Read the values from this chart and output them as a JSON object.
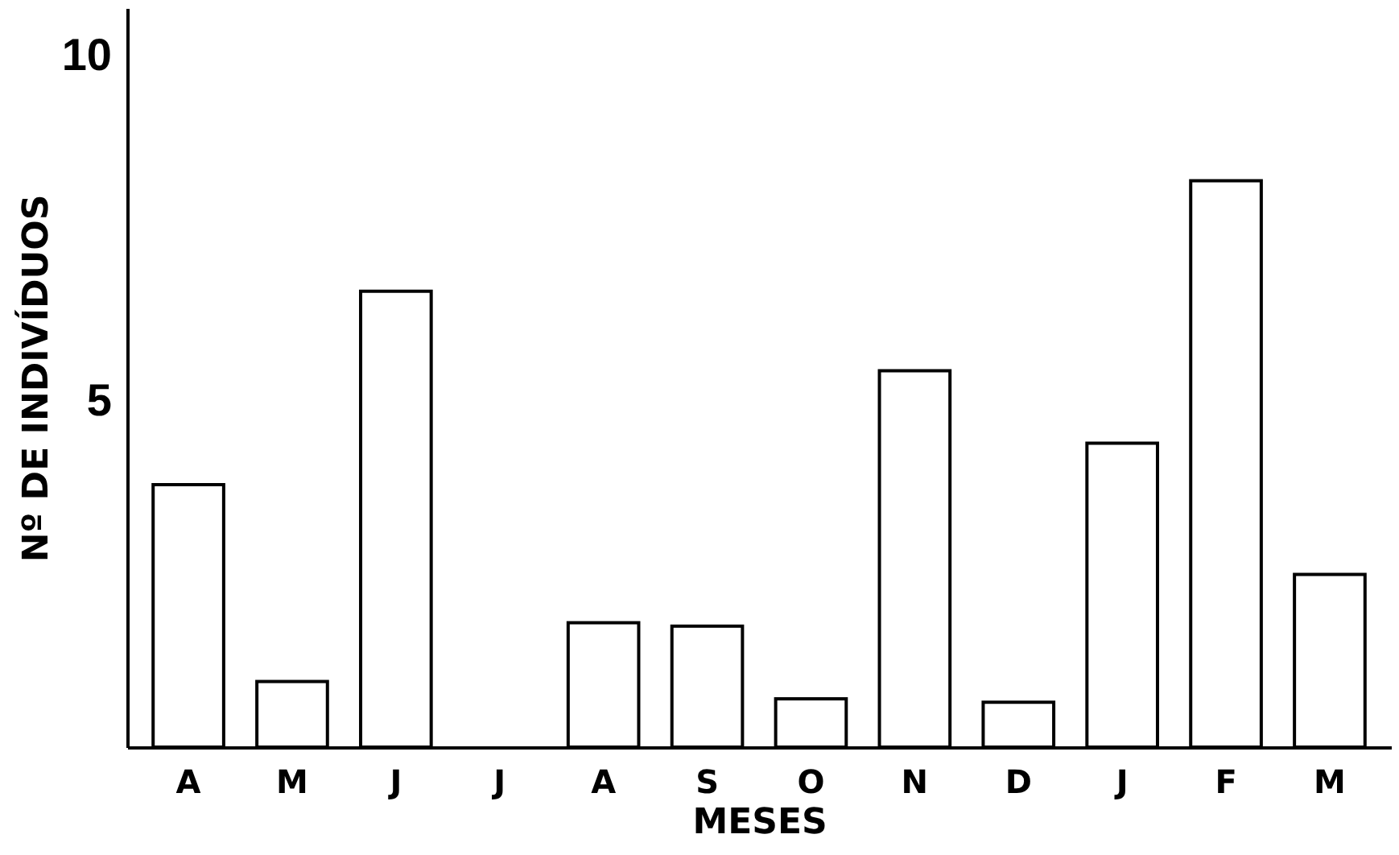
{
  "chart_data": {
    "type": "bar",
    "xlabel": "MESES",
    "ylabel": "Nº DE INDIVÍDUOS",
    "categories": [
      "A",
      "M",
      "J",
      "J",
      "A",
      "S",
      "O",
      "N",
      "D",
      "J",
      "F",
      "M"
    ],
    "values": [
      3.8,
      0.95,
      6.6,
      null,
      1.8,
      1.75,
      0.7,
      5.45,
      0.65,
      4.4,
      8.2,
      2.5
    ],
    "color": "#ffffff",
    "ylim": [
      0,
      10.7
    ],
    "yticks": [
      5,
      10
    ],
    "grid": false
  }
}
